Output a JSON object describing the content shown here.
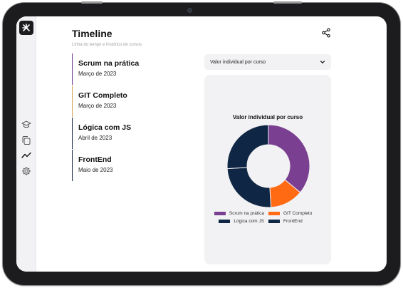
{
  "header": {
    "title": "Timeline",
    "subtitle": "Linha do tempo e histórico de cursos",
    "share_icon": "share-icon"
  },
  "sidebar": {
    "logo_icon": "logo-icon",
    "items": [
      {
        "icon": "graduation-cap-icon"
      },
      {
        "icon": "copy-icon"
      },
      {
        "icon": "trend-line-icon",
        "active": true
      },
      {
        "icon": "gear-icon"
      }
    ]
  },
  "timeline": [
    {
      "course": "Scrum na prática",
      "date": "Março de 2023",
      "color": "#6d3a8f"
    },
    {
      "course": "GIT Completo",
      "date": "Março de 2023",
      "color": "#d9a25a"
    },
    {
      "course": "Lógica com JS",
      "date": "Abril de 2023",
      "color": "#1b2a3f"
    },
    {
      "course": "FrontEnd",
      "date": "Maio de 2023",
      "color": "#1b2a3f"
    }
  ],
  "select": {
    "value": "Valor individual por curso"
  },
  "chart_data": {
    "type": "pie",
    "donut": true,
    "title": "Valor individual por curso",
    "legend_position": "bottom",
    "categories": [
      "Scrum na prática",
      "GIT Completo",
      "Lógica com JS",
      "FrontEnd"
    ],
    "values": [
      36,
      13,
      25,
      26
    ],
    "colors": [
      "#7b3f91",
      "#ff6a13",
      "#0f2744",
      "#0f2744"
    ]
  }
}
